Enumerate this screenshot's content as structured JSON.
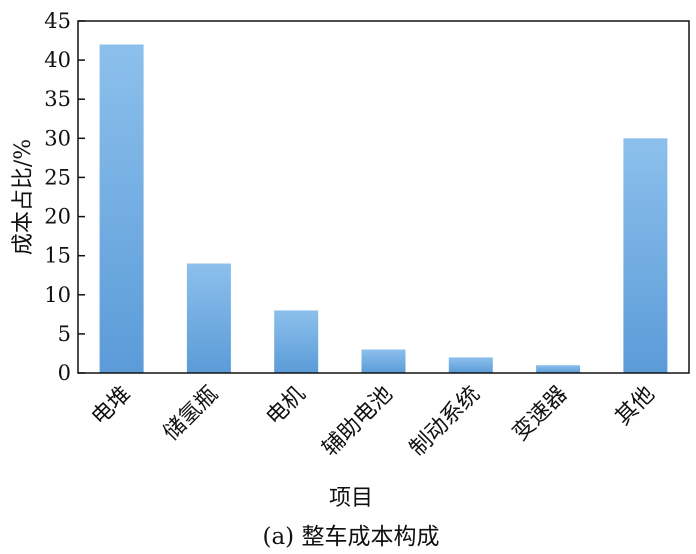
{
  "chart_data": {
    "type": "bar",
    "title": "",
    "caption": "(a) 整车成本构成",
    "xlabel": "项目",
    "ylabel": "成本占比/%",
    "categories": [
      "电堆",
      "储氢瓶",
      "电机",
      "辅助电池",
      "制动系统",
      "变速器",
      "其他"
    ],
    "values": [
      42,
      14,
      8,
      3,
      2,
      1,
      30
    ],
    "ylim": [
      0,
      45
    ],
    "yticks": [
      "0",
      "5",
      "10",
      "15",
      "20",
      "25",
      "30",
      "35",
      "40",
      "45"
    ],
    "grid": false,
    "legend": "none",
    "bar_color_top": "#8cc0ec",
    "bar_color_bottom": "#5b9bd8",
    "axis_color": "#111111"
  }
}
